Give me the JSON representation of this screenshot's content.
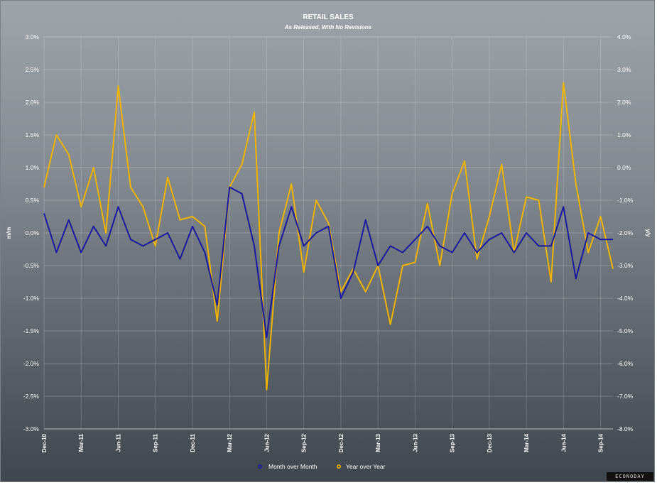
{
  "chart_data": {
    "type": "line",
    "title": "RETAIL SALES",
    "subtitle": "As Released, With No Revisions",
    "ylabel_left": "m/m",
    "ylabel_right": "y/y",
    "ylim_left": [
      -3.0,
      3.0
    ],
    "ylim_right": [
      -8.0,
      4.0
    ],
    "yticks_left": [
      "3.0%",
      "2.5%",
      "2.0%",
      "1.5%",
      "1.0%",
      "0.5%",
      "0.0%",
      "-0.5%",
      "-1.0%",
      "-1.5%",
      "-2.0%",
      "-2.5%",
      "-3.0%"
    ],
    "yticks_right": [
      "4.0%",
      "3.0%",
      "2.0%",
      "1.0%",
      "0.0%",
      "-1.0%",
      "-2.0%",
      "-3.0%",
      "-4.0%",
      "-5.0%",
      "-6.0%",
      "-7.0%",
      "-8.0%"
    ],
    "x": [
      "Dec-10",
      "Jan-11",
      "Feb-11",
      "Mar-11",
      "Apr-11",
      "May-11",
      "Jun-11",
      "Jul-11",
      "Aug-11",
      "Sep-11",
      "Oct-11",
      "Nov-11",
      "Dec-11",
      "Jan-12",
      "Feb-12",
      "Mar-12",
      "Apr-12",
      "May-12",
      "Jun-12",
      "Jul-12",
      "Aug-12",
      "Sep-12",
      "Oct-12",
      "Nov-12",
      "Dec-12",
      "Jan-13",
      "Feb-13",
      "Mar-13",
      "Apr-13",
      "May-13",
      "Jun-13",
      "Jul-13",
      "Aug-13",
      "Sep-13",
      "Oct-13",
      "Nov-13",
      "Dec-13",
      "Jan-14",
      "Feb-14",
      "Mar-14",
      "Apr-14",
      "May-14",
      "Jun-14",
      "Jul-14",
      "Aug-14",
      "Sep-14",
      "Oct-14"
    ],
    "xtick_labels": [
      "Dec-10",
      "Mar-11",
      "Jun-11",
      "Sep-11",
      "Dec-11",
      "Mar-12",
      "Jun-12",
      "Sep-12",
      "Dec-12",
      "Mar-13",
      "Jun-13",
      "Sep-13",
      "Dec-13",
      "Mar-14",
      "Jun-14",
      "Sep-14"
    ],
    "series": [
      {
        "name": "Month over Month",
        "axis": "left",
        "color": "#1a1a9e",
        "values": [
          0.3,
          -0.3,
          0.2,
          -0.3,
          0.1,
          -0.2,
          0.4,
          -0.1,
          -0.2,
          -0.1,
          0.0,
          -0.4,
          0.1,
          -0.3,
          -1.1,
          0.7,
          0.6,
          -0.2,
          -1.6,
          -0.2,
          0.4,
          -0.2,
          0.0,
          0.1,
          -1.0,
          -0.6,
          0.2,
          -0.5,
          -0.2,
          -0.3,
          -0.1,
          0.1,
          -0.2,
          -0.3,
          0.0,
          -0.3,
          -0.1,
          0.0,
          -0.3,
          0.0,
          -0.2,
          -0.2,
          0.4,
          -0.7,
          0.0,
          -0.1,
          -0.1
        ]
      },
      {
        "name": "Year over Year",
        "axis": "right",
        "color": "#f0b400",
        "values": [
          -0.6,
          1.0,
          0.4,
          -1.2,
          0.0,
          -2.0,
          2.5,
          -0.6,
          -1.2,
          -2.4,
          -0.3,
          -1.6,
          -1.5,
          -1.8,
          -4.7,
          -0.6,
          0.1,
          1.7,
          -6.8,
          -2.0,
          -0.5,
          -3.2,
          -1.0,
          -1.7,
          -3.8,
          -3.1,
          -3.8,
          -3.0,
          -4.8,
          -3.0,
          -2.9,
          -1.1,
          -3.0,
          -0.8,
          0.2,
          -2.8,
          -1.5,
          0.1,
          -2.6,
          -0.9,
          -1.0,
          -3.5,
          2.6,
          -0.5,
          -2.6,
          -1.5,
          -3.1
        ]
      }
    ],
    "legend": "bottom-center",
    "grid": true
  },
  "brand": "ECONODAY"
}
